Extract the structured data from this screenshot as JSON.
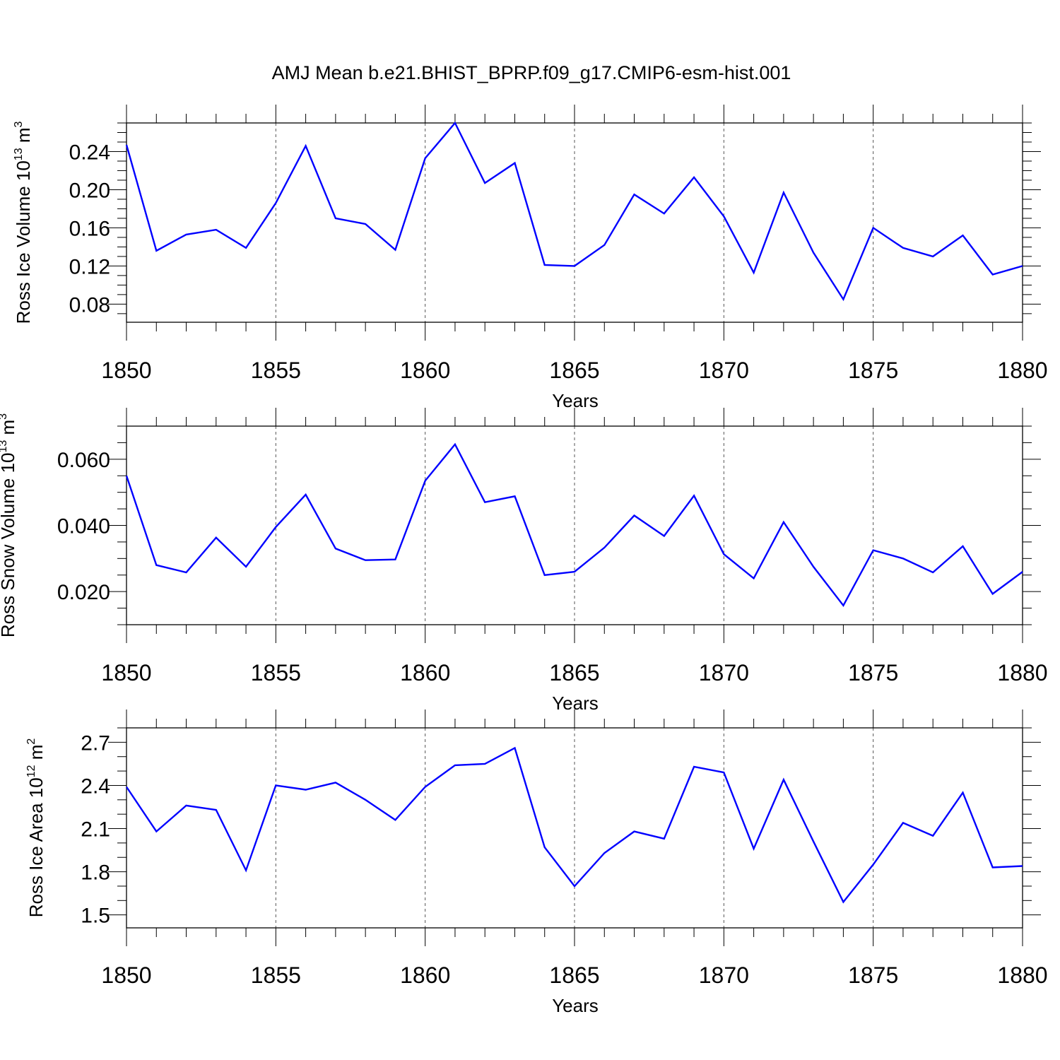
{
  "title": "AMJ Mean b.e21.BHIST_BPRP.f09_g17.CMIP6-esm-hist.001",
  "series_color": "#0000ff",
  "chart_data": [
    {
      "type": "line",
      "ylabel_main": "Ross Ice Volume 10",
      "ylabel_exp": "13",
      "ylabel_unit": " m",
      "ylabel_unit_exp": "3",
      "xlabel": "Years",
      "xlim": [
        1850,
        1880
      ],
      "ylim": [
        0.061,
        0.27
      ],
      "x_ticks": [
        1850,
        1855,
        1860,
        1865,
        1870,
        1875,
        1880
      ],
      "y_ticks": [
        0.08,
        0.12,
        0.16,
        0.2,
        0.24
      ],
      "y_tick_labels": [
        "0.08",
        "0.12",
        "0.16",
        "0.20",
        "0.24"
      ],
      "y_minor_step": 0.01,
      "x": [
        1850,
        1851,
        1852,
        1853,
        1854,
        1855,
        1856,
        1857,
        1858,
        1859,
        1860,
        1861,
        1862,
        1863,
        1864,
        1865,
        1866,
        1867,
        1868,
        1869,
        1870,
        1871,
        1872,
        1873,
        1874,
        1875,
        1876,
        1877,
        1878,
        1879,
        1880
      ],
      "values": [
        0.247,
        0.136,
        0.153,
        0.158,
        0.139,
        0.186,
        0.246,
        0.17,
        0.164,
        0.137,
        0.233,
        0.27,
        0.207,
        0.228,
        0.121,
        0.12,
        0.142,
        0.195,
        0.175,
        0.213,
        0.172,
        0.113,
        0.197,
        0.134,
        0.085,
        0.16,
        0.139,
        0.13,
        0.152,
        0.111,
        0.12
      ]
    },
    {
      "type": "line",
      "ylabel_main": "Ross Snow Volume 10",
      "ylabel_exp": "13",
      "ylabel_unit": " m",
      "ylabel_unit_exp": "3",
      "xlabel": "Years",
      "xlim": [
        1850,
        1880
      ],
      "ylim": [
        0.01,
        0.07
      ],
      "x_ticks": [
        1850,
        1855,
        1860,
        1865,
        1870,
        1875,
        1880
      ],
      "y_ticks": [
        0.02,
        0.04,
        0.06
      ],
      "y_tick_labels": [
        "0.020",
        "0.040",
        "0.060"
      ],
      "y_minor_step": 0.005,
      "x": [
        1850,
        1851,
        1852,
        1853,
        1854,
        1855,
        1856,
        1857,
        1858,
        1859,
        1860,
        1861,
        1862,
        1863,
        1864,
        1865,
        1866,
        1867,
        1868,
        1869,
        1870,
        1871,
        1872,
        1873,
        1874,
        1875,
        1876,
        1877,
        1878,
        1879,
        1880
      ],
      "values": [
        0.055,
        0.028,
        0.0258,
        0.0363,
        0.0275,
        0.0395,
        0.0493,
        0.033,
        0.0295,
        0.0297,
        0.0535,
        0.0645,
        0.047,
        0.0488,
        0.025,
        0.026,
        0.0333,
        0.043,
        0.0368,
        0.049,
        0.0313,
        0.024,
        0.041,
        0.0275,
        0.0158,
        0.0325,
        0.03,
        0.0258,
        0.0337,
        0.0193,
        0.026
      ]
    },
    {
      "type": "line",
      "ylabel_main": "Ross Ice Area 10",
      "ylabel_exp": "12",
      "ylabel_unit": " m",
      "ylabel_unit_exp": "2",
      "xlabel": "Years",
      "xlim": [
        1850,
        1880
      ],
      "ylim": [
        1.41,
        2.8
      ],
      "x_ticks": [
        1850,
        1855,
        1860,
        1865,
        1870,
        1875,
        1880
      ],
      "y_ticks": [
        1.5,
        1.8,
        2.1,
        2.4,
        2.7
      ],
      "y_tick_labels": [
        "1.5",
        "1.8",
        "2.1",
        "2.4",
        "2.7"
      ],
      "y_minor_step": 0.1,
      "x": [
        1850,
        1851,
        1852,
        1853,
        1854,
        1855,
        1856,
        1857,
        1858,
        1859,
        1860,
        1861,
        1862,
        1863,
        1864,
        1865,
        1866,
        1867,
        1868,
        1869,
        1870,
        1871,
        1872,
        1873,
        1874,
        1875,
        1876,
        1877,
        1878,
        1879,
        1880
      ],
      "values": [
        2.39,
        2.08,
        2.26,
        2.23,
        1.81,
        2.4,
        2.37,
        2.42,
        2.3,
        2.16,
        2.39,
        2.54,
        2.55,
        2.66,
        1.97,
        1.7,
        1.93,
        2.08,
        2.03,
        2.53,
        2.49,
        1.96,
        2.44,
        2.01,
        1.59,
        1.85,
        2.14,
        2.05,
        2.35,
        1.83,
        1.84
      ]
    }
  ]
}
